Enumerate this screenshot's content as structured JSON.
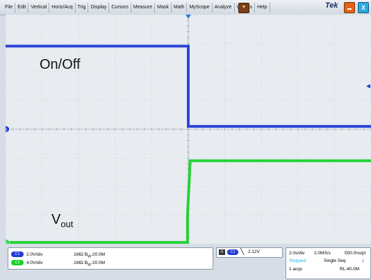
{
  "menubar": {
    "items": [
      "File",
      "Edit",
      "Vertical",
      "Horiz/Acq",
      "Trig",
      "Display",
      "Cursors",
      "Measure",
      "Mask",
      "Math",
      "MyScope",
      "Analyze",
      "Utilities",
      "Help"
    ],
    "brand": "Tek",
    "close_glyph": "X",
    "dropdown_icon": "chevron-down-icon"
  },
  "colors": {
    "ch1": "#1f3bd8",
    "ch2": "#19d22a",
    "grid": "#a8b0ba",
    "screen": "#e8ecf0"
  },
  "waveform_labels": {
    "ch1": "On/Off",
    "ch2_main": "V",
    "ch2_sub": "out"
  },
  "chart_data": {
    "type": "line",
    "x_divisions": 10,
    "y_divisions": 8,
    "series": [
      {
        "channel": "1",
        "color": "#1f3bd8",
        "x": [
          0,
          5,
          5,
          10
        ],
        "y": [
          2.9,
          2.9,
          0.1,
          0.1
        ]
      },
      {
        "channel": "2",
        "color": "#19d22a",
        "x": [
          0,
          4.98,
          4.98,
          5.05,
          5.05,
          10
        ],
        "y": [
          -3.95,
          -3.95,
          -3.0,
          -1.2,
          -1.1,
          -1.1
        ]
      }
    ],
    "ylim": [
      -4,
      4
    ],
    "xlim": [
      0,
      10
    ],
    "grid": true
  },
  "channels": [
    {
      "badge": "C1",
      "scale": "2.0V/div",
      "impedance": "1MΩ",
      "bw_prefix": "B",
      "bw_sub": "W",
      "bw_value": ":20.0M",
      "color": "#1f3bd8"
    },
    {
      "badge": "C2",
      "scale": "4.0V/div",
      "impedance": "1MΩ",
      "bw_prefix": "B",
      "bw_sub": "W",
      "bw_value": ":20.0M",
      "color": "#19d22a"
    }
  ],
  "trigger": {
    "source": "C1",
    "slope_icon": "falling-edge-icon",
    "level": "2.12V"
  },
  "timebase": {
    "scale": "2.0s/div",
    "sample_rate": "2.0MS/s",
    "resolution": "500.0ns/pt",
    "state": "Stopped",
    "mode": "Single Seq",
    "acqs": "1 acqs",
    "record_length": "RL:40.0M"
  }
}
